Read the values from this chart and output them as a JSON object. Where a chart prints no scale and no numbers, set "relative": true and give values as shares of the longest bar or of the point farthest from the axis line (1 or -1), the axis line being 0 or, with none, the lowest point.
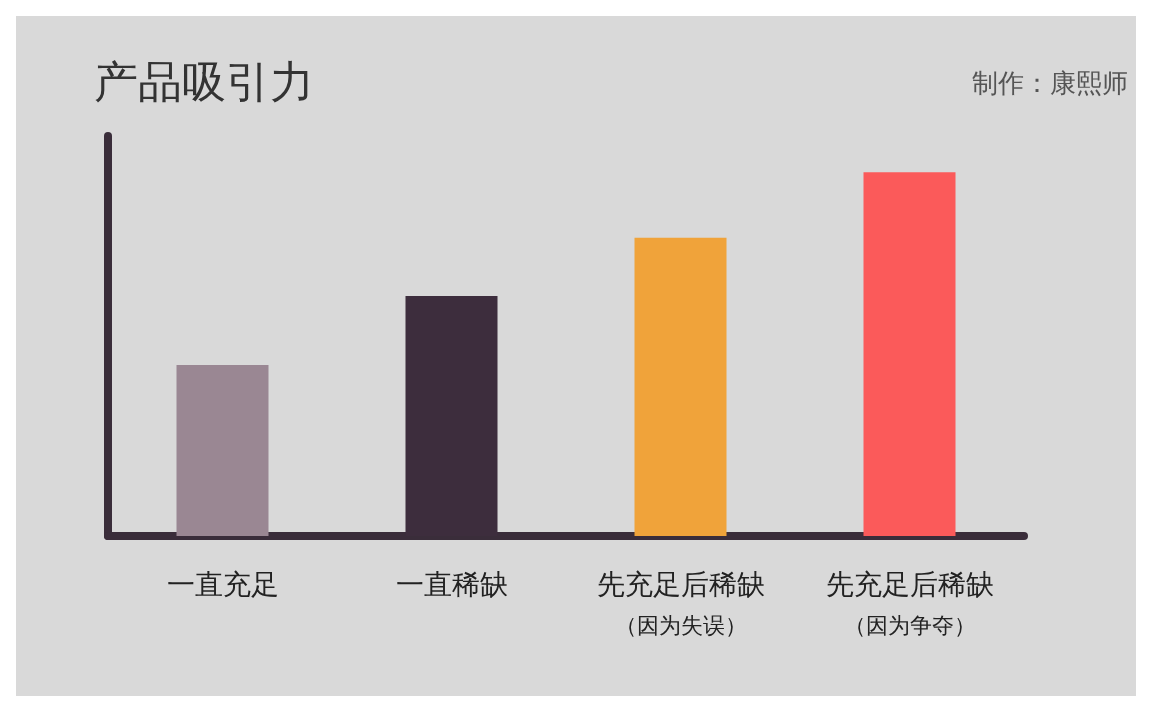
{
  "chart_data": {
    "type": "bar",
    "title": "产品吸引力",
    "annotations": [
      "制作：康熙师"
    ],
    "categories": [
      "一直充足",
      "一直稀缺",
      "先充足后稀缺（因为失误）",
      "先充足后稀缺（因为争夺）"
    ],
    "values": [
      0.47,
      0.66,
      0.82,
      1
    ],
    "colors": [
      "#9a8793",
      "#3d2d3d",
      "#f0a33a",
      "#fb5a5a"
    ],
    "relative": true,
    "grid": false
  }
}
